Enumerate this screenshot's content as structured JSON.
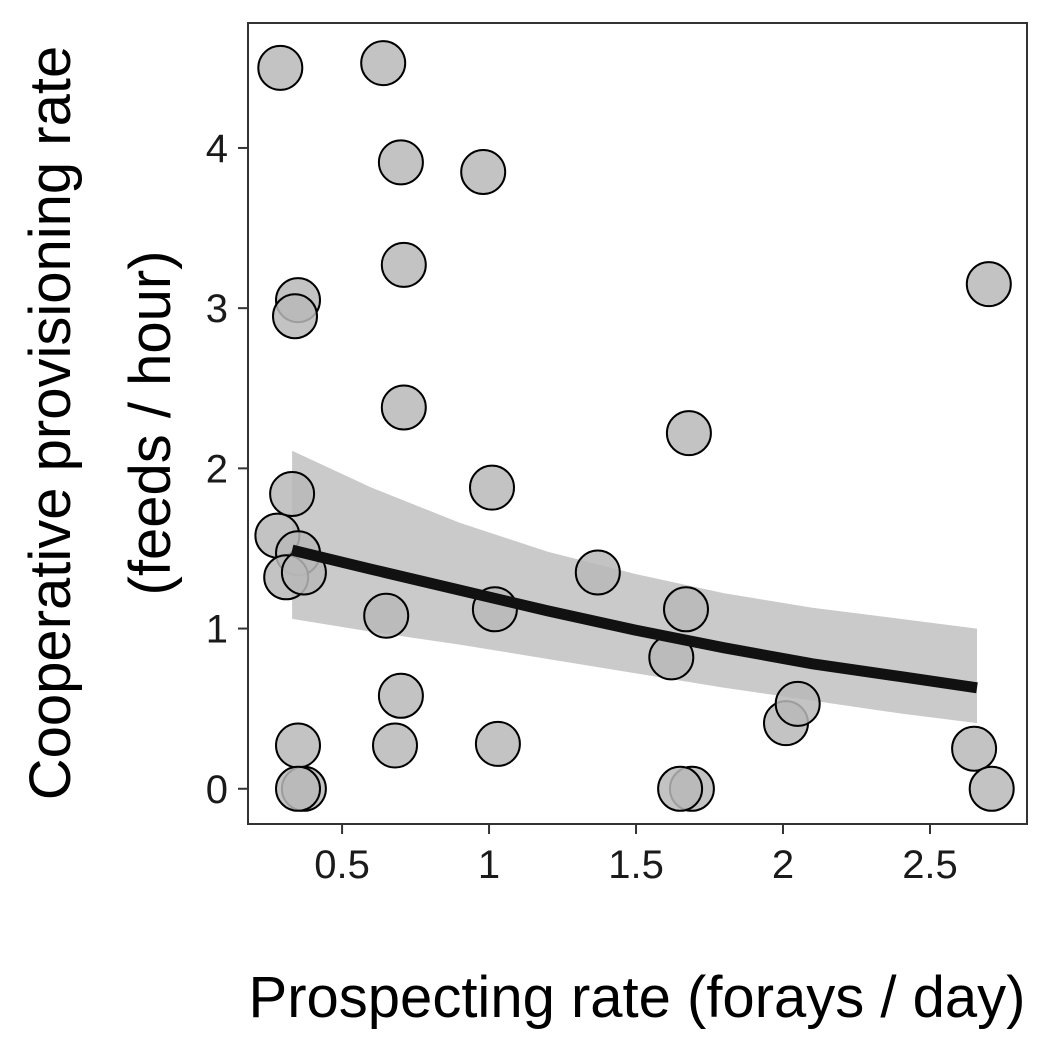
{
  "chart_data": {
    "type": "scatter",
    "title": "",
    "xlabel": "Prospecting rate (forays / day)",
    "ylabel_lines": [
      "Cooperative provisioning rate",
      "(feeds / hour)"
    ],
    "xlim": [
      0.18,
      2.83
    ],
    "ylim": [
      -0.22,
      4.78
    ],
    "x_ticks": [
      {
        "value": 0.5,
        "label": "0.5"
      },
      {
        "value": 1,
        "label": "1"
      },
      {
        "value": 1.5,
        "label": "1.5"
      },
      {
        "value": 2,
        "label": "2"
      },
      {
        "value": 2.5,
        "label": "2.5"
      }
    ],
    "y_ticks": [
      {
        "value": 0,
        "label": "0"
      },
      {
        "value": 1,
        "label": "1"
      },
      {
        "value": 2,
        "label": "2"
      },
      {
        "value": 3,
        "label": "3"
      },
      {
        "value": 4,
        "label": "4"
      }
    ],
    "grid": false,
    "legend": "none",
    "points": [
      {
        "x": 0.29,
        "y": 4.5
      },
      {
        "x": 0.64,
        "y": 4.53
      },
      {
        "x": 0.7,
        "y": 3.91
      },
      {
        "x": 0.98,
        "y": 3.85
      },
      {
        "x": 0.71,
        "y": 3.27
      },
      {
        "x": 2.7,
        "y": 3.15
      },
      {
        "x": 0.35,
        "y": 3.05
      },
      {
        "x": 0.34,
        "y": 2.95
      },
      {
        "x": 0.71,
        "y": 2.38
      },
      {
        "x": 1.68,
        "y": 2.22
      },
      {
        "x": 0.33,
        "y": 1.84
      },
      {
        "x": 1.01,
        "y": 1.88
      },
      {
        "x": 0.28,
        "y": 1.58
      },
      {
        "x": 0.35,
        "y": 1.47
      },
      {
        "x": 0.31,
        "y": 1.32
      },
      {
        "x": 0.37,
        "y": 1.35
      },
      {
        "x": 1.37,
        "y": 1.35
      },
      {
        "x": 0.65,
        "y": 1.08
      },
      {
        "x": 1.02,
        "y": 1.12
      },
      {
        "x": 1.67,
        "y": 1.12
      },
      {
        "x": 1.62,
        "y": 0.82
      },
      {
        "x": 0.7,
        "y": 0.58
      },
      {
        "x": 2.01,
        "y": 0.41
      },
      {
        "x": 2.05,
        "y": 0.53
      },
      {
        "x": 0.35,
        "y": 0.27
      },
      {
        "x": 0.68,
        "y": 0.27
      },
      {
        "x": 1.03,
        "y": 0.28
      },
      {
        "x": 2.65,
        "y": 0.25
      },
      {
        "x": 0.37,
        "y": 0.0
      },
      {
        "x": 0.35,
        "y": 0.0
      },
      {
        "x": 1.69,
        "y": 0.0
      },
      {
        "x": 1.65,
        "y": 0.0
      },
      {
        "x": 2.71,
        "y": 0.0
      }
    ],
    "fit_line": {
      "x": [
        0.33,
        0.6,
        0.9,
        1.2,
        1.5,
        1.8,
        2.1,
        2.4,
        2.66
      ],
      "y": [
        1.49,
        1.37,
        1.24,
        1.11,
        0.99,
        0.88,
        0.78,
        0.7,
        0.63
      ]
    },
    "confidence_band": {
      "x": [
        0.33,
        0.6,
        0.9,
        1.2,
        1.5,
        1.8,
        2.1,
        2.4,
        2.66
      ],
      "lower": [
        1.06,
        0.98,
        0.9,
        0.81,
        0.72,
        0.63,
        0.55,
        0.47,
        0.41
      ],
      "upper": [
        2.11,
        1.88,
        1.66,
        1.48,
        1.34,
        1.22,
        1.13,
        1.06,
        1.0
      ]
    },
    "colors": {
      "point_fill": "#b8b8b8",
      "point_stroke": "#000000",
      "line": "#111111",
      "band": "#b3b3b3",
      "frame": "#333333"
    }
  }
}
